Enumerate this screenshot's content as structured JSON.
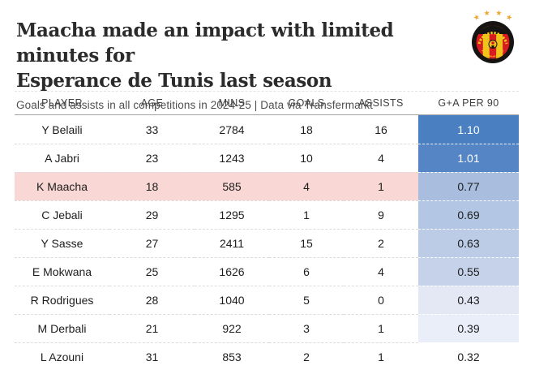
{
  "header": {
    "title_line1": "Maacha made an impact with limited minutes for",
    "title_line2": "Esperance de Tunis last season",
    "subtitle": "Goals and assists in all competitions in 2024-25 | Data via Transfermarkt",
    "logo": "esperance-de-tunis-crest"
  },
  "accent_colors": {
    "highlight_pink": "#f8d7d5",
    "header_rule_gray": "#a3a3a3",
    "crest_black": "#161412",
    "crest_red": "#d91a21",
    "crest_yellow": "#f2c21c",
    "crest_star_gold": "#eca52f"
  },
  "chart_data": {
    "type": "table",
    "title": "Maacha made an impact with limited minutes for Esperance de Tunis last season",
    "subtitle": "Goals and assists in all competitions in 2024-25 | Data via Transfermarkt",
    "columns": [
      "PLAYER",
      "AGE",
      "MINS",
      "GOALS",
      "ASSISTS",
      "G+A PER 90"
    ],
    "column_keys": [
      "player",
      "age",
      "mins",
      "goals",
      "assists",
      "ga_per_90"
    ],
    "highlight_row_color": "#f8d7d5",
    "scale": {
      "metric": "G+A PER 90",
      "min": 0.32,
      "max": 1.1,
      "low_color": "#ffffff",
      "high_color": "#4a7fc1"
    },
    "rows": [
      {
        "player": "Y Belaili",
        "age": 33,
        "mins": 2784,
        "goals": 18,
        "assists": 16,
        "ga_per_90": "1.10",
        "ga_bg": "#4a7fc1",
        "ga_text": "#ffffff",
        "highlight": false
      },
      {
        "player": "A Jabri",
        "age": 23,
        "mins": 1243,
        "goals": 10,
        "assists": 4,
        "ga_per_90": "1.01",
        "ga_bg": "#5585c5",
        "ga_text": "#ffffff",
        "highlight": false
      },
      {
        "player": "K Maacha",
        "age": 18,
        "mins": 585,
        "goals": 4,
        "assists": 1,
        "ga_per_90": "0.77",
        "ga_bg": "#a9bede",
        "ga_text": "#1d1d1d",
        "highlight": true
      },
      {
        "player": "C Jebali",
        "age": 29,
        "mins": 1295,
        "goals": 1,
        "assists": 9,
        "ga_per_90": "0.69",
        "ga_bg": "#b3c6e3",
        "ga_text": "#1d1d1d",
        "highlight": false
      },
      {
        "player": "Y Sasse",
        "age": 27,
        "mins": 2411,
        "goals": 15,
        "assists": 2,
        "ga_per_90": "0.63",
        "ga_bg": "#bccce6",
        "ga_text": "#1d1d1d",
        "highlight": false
      },
      {
        "player": "E Mokwana",
        "age": 25,
        "mins": 1626,
        "goals": 6,
        "assists": 4,
        "ga_per_90": "0.55",
        "ga_bg": "#c6d2ea",
        "ga_text": "#1d1d1d",
        "highlight": false
      },
      {
        "player": "R Rodrigues",
        "age": 28,
        "mins": 1040,
        "goals": 5,
        "assists": 0,
        "ga_per_90": "0.43",
        "ga_bg": "#e3e8f4",
        "ga_text": "#1d1d1d",
        "highlight": false
      },
      {
        "player": "M Derbali",
        "age": 21,
        "mins": 922,
        "goals": 3,
        "assists": 1,
        "ga_per_90": "0.39",
        "ga_bg": "#eaeef8",
        "ga_text": "#1d1d1d",
        "highlight": false
      },
      {
        "player": "L Azouni",
        "age": 31,
        "mins": 853,
        "goals": 2,
        "assists": 1,
        "ga_per_90": "0.32",
        "ga_bg": "#ffffff",
        "ga_text": "#1d1d1d",
        "highlight": false
      }
    ]
  }
}
